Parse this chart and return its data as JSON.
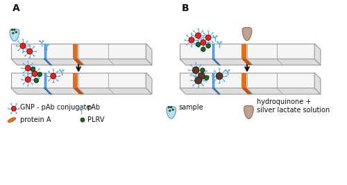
{
  "title_A": "A",
  "title_B": "B",
  "background_color": "#ffffff",
  "legend_items": [
    {
      "label": "GNP - pAb conjugate",
      "type": "gnp"
    },
    {
      "label": "pAb",
      "type": "pab"
    },
    {
      "label": "protein A",
      "type": "proteinA"
    },
    {
      "label": "PLRV",
      "type": "plrv"
    },
    {
      "label": "sample",
      "type": "sample"
    },
    {
      "label": "hydroquinone +\nsilver lactate solution",
      "type": "silver"
    }
  ],
  "orange_band": "#e07020",
  "blue_line": "#4488cc",
  "gnp_color": "#ee2222",
  "gnp_spike_color": "#66aadd",
  "plrv_color": "#226622",
  "silver_color": "#5a3a2a",
  "arrow_color": "#111111",
  "text_color": "#111111",
  "font_size": 7
}
